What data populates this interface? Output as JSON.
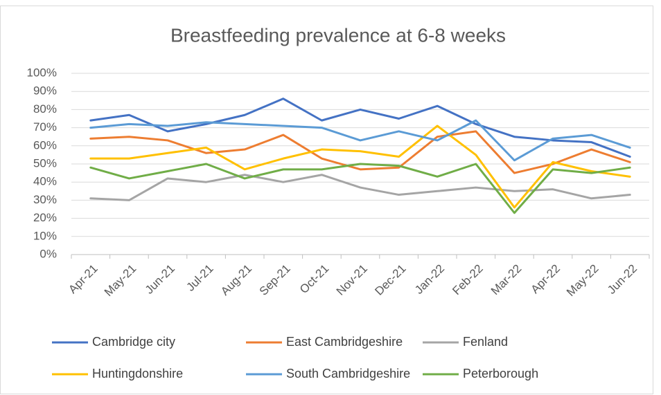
{
  "chart_data": {
    "type": "line",
    "title": "Breastfeeding prevalence at 6-8 weeks",
    "categories": [
      "Apr-21",
      "May-21",
      "Jun-21",
      "Jul-21",
      "Aug-21",
      "Sep-21",
      "Oct-21",
      "Nov-21",
      "Dec-21",
      "Jan-22",
      "Feb-22",
      "Mar-22",
      "Apr-22",
      "May-22",
      "Jun-22"
    ],
    "series": [
      {
        "name": "Cambridge city",
        "color": "#4472c4",
        "values": [
          74,
          77,
          68,
          72,
          77,
          86,
          74,
          80,
          75,
          82,
          72,
          65,
          63,
          62,
          54
        ]
      },
      {
        "name": "East Cambridgeshire",
        "color": "#ed7d31",
        "values": [
          64,
          65,
          63,
          56,
          58,
          66,
          53,
          47,
          48,
          65,
          68,
          45,
          50,
          58,
          51
        ]
      },
      {
        "name": "Fenland",
        "color": "#a5a5a5",
        "values": [
          31,
          30,
          42,
          40,
          44,
          40,
          44,
          37,
          33,
          35,
          37,
          35,
          36,
          31,
          33
        ]
      },
      {
        "name": "Huntingdonshire",
        "color": "#ffc000",
        "values": [
          53,
          53,
          56,
          59,
          47,
          53,
          58,
          57,
          54,
          71,
          55,
          26,
          51,
          46,
          43
        ]
      },
      {
        "name": "South Cambridgeshire",
        "color": "#5b9bd5",
        "values": [
          70,
          72,
          71,
          73,
          72,
          71,
          70,
          63,
          68,
          63,
          74,
          52,
          64,
          66,
          59
        ]
      },
      {
        "name": "Peterborough",
        "color": "#70ad47",
        "values": [
          48,
          42,
          46,
          50,
          42,
          47,
          47,
          50,
          49,
          43,
          50,
          23,
          47,
          45,
          48
        ]
      }
    ],
    "ylim": [
      0,
      100
    ],
    "yticks": [
      {
        "value": 0,
        "label": "0%"
      },
      {
        "value": 10,
        "label": "10%"
      },
      {
        "value": 20,
        "label": "20%"
      },
      {
        "value": 30,
        "label": "30%"
      },
      {
        "value": 40,
        "label": "40%"
      },
      {
        "value": 50,
        "label": "50%"
      },
      {
        "value": 60,
        "label": "60%"
      },
      {
        "value": 70,
        "label": "70%"
      },
      {
        "value": 80,
        "label": "80%"
      },
      {
        "value": 90,
        "label": "90%"
      },
      {
        "value": 100,
        "label": "100%"
      }
    ],
    "grid": true,
    "legend": "bottom"
  }
}
